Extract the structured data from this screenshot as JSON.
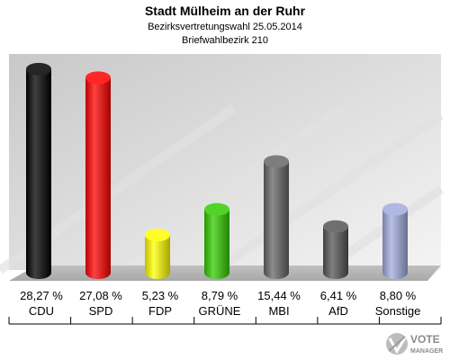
{
  "chart_data": {
    "type": "bar",
    "title": "Stadt Mülheim an der Ruhr",
    "subtitle": "Bezirksvertretungswahl 25.05.2014",
    "subtitle2": "Briefwahlbezirk 210",
    "categories": [
      "CDU",
      "SPD",
      "FDP",
      "GRÜNE",
      "MBI",
      "AfD",
      "Sonstige"
    ],
    "values": [
      28.27,
      27.08,
      5.23,
      8.79,
      15.44,
      6.41,
      8.8
    ],
    "value_labels": [
      "28,27 %",
      "27,08 %",
      "5,23 %",
      "8,79 %",
      "15,44 %",
      "6,41 %",
      "8,80 %"
    ],
    "colors": [
      "#000000",
      "#ff0000",
      "#ffff00",
      "#33cc00",
      "#666666",
      "#555555",
      "#a0acdc"
    ],
    "ylim": [
      0,
      30
    ],
    "grid": false,
    "legend": "none"
  },
  "watermark": {
    "line1": "VOTE",
    "line2": "MANAGER"
  }
}
